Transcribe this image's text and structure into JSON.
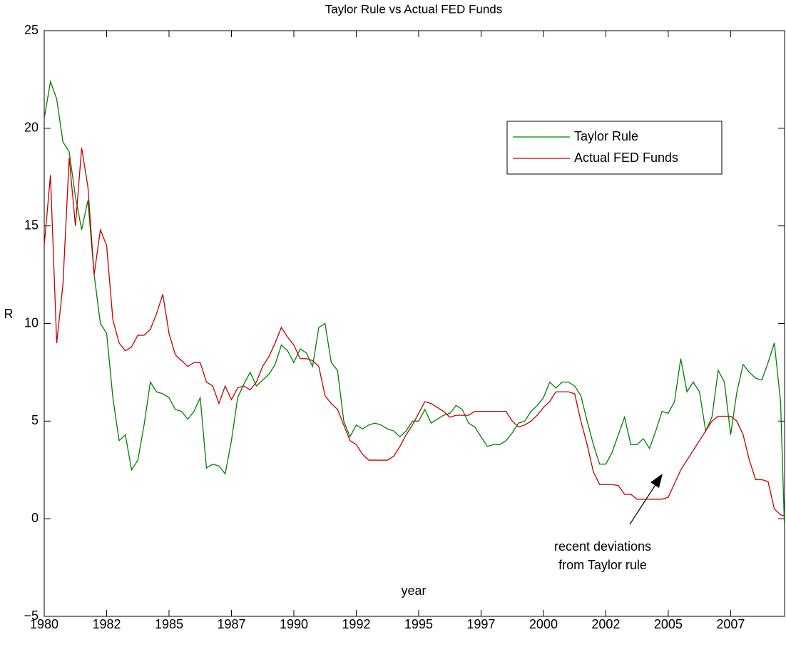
{
  "chart_data": {
    "type": "line",
    "title": "Taylor Rule vs Actual FED Funds",
    "x_label": "year",
    "y_label": "R",
    "annotation": [
      "recent deviations",
      "from Taylor rule"
    ],
    "legend": "northeast",
    "grid": false,
    "xlim": [
      1980,
      2009.66
    ],
    "ylim": [
      -5,
      25
    ],
    "xticks": [
      1980,
      {
        "value": 1982.5,
        "label": "1982"
      },
      1985,
      {
        "value": 1987.5,
        "label": "1987"
      },
      1990,
      {
        "value": 1992.5,
        "label": "1992"
      },
      1995,
      {
        "value": 1997.5,
        "label": "1997"
      },
      2000,
      {
        "value": 2002.5,
        "label": "2002"
      },
      2005,
      {
        "value": 2007.5,
        "label": "2007"
      }
    ],
    "yticks": [
      {
        "value": -5,
        "label": "−5"
      },
      0,
      5,
      10,
      15,
      20,
      25
    ],
    "x": [
      1980,
      1980.25,
      1980.5,
      1980.75,
      1981,
      1981.25,
      1981.5,
      1981.75,
      1982,
      1982.25,
      1982.5,
      1982.75,
      1983,
      1983.25,
      1983.5,
      1983.75,
      1984,
      1984.25,
      1984.5,
      1984.75,
      1985,
      1985.25,
      1985.5,
      1985.75,
      1986,
      1986.25,
      1986.5,
      1986.75,
      1987,
      1987.25,
      1987.5,
      1987.75,
      1988,
      1988.25,
      1988.5,
      1988.75,
      1989,
      1989.25,
      1989.5,
      1989.75,
      1990,
      1990.25,
      1990.5,
      1990.75,
      1991,
      1991.25,
      1991.5,
      1991.75,
      1992,
      1992.25,
      1992.5,
      1992.75,
      1993,
      1993.25,
      1993.5,
      1993.75,
      1994,
      1994.25,
      1994.5,
      1994.75,
      1995,
      1995.25,
      1995.5,
      1995.75,
      1996,
      1996.25,
      1996.5,
      1996.75,
      1997,
      1997.25,
      1997.5,
      1997.75,
      1998,
      1998.25,
      1998.5,
      1998.75,
      1999,
      1999.25,
      1999.5,
      1999.75,
      2000,
      2000.25,
      2000.5,
      2000.75,
      2001,
      2001.25,
      2001.5,
      2001.75,
      2002,
      2002.25,
      2002.5,
      2002.75,
      2003,
      2003.25,
      2003.5,
      2003.75,
      2004,
      2004.25,
      2004.5,
      2004.75,
      2005,
      2005.25,
      2005.5,
      2005.75,
      2006,
      2006.25,
      2006.5,
      2006.75,
      2007,
      2007.25,
      2007.5,
      2007.75,
      2008,
      2008.25,
      2008.5,
      2008.75,
      2009,
      2009.25,
      2009.5,
      2009.65
    ],
    "series": [
      {
        "name": "Taylor Rule",
        "color": "#007f00",
        "values": [
          20.5,
          22.4,
          21.5,
          19.3,
          18.8,
          16.5,
          14.8,
          16.3,
          12.5,
          10.0,
          9.5,
          6.2,
          4.0,
          4.3,
          2.5,
          3.0,
          4.8,
          7.0,
          6.5,
          6.4,
          6.2,
          5.6,
          5.5,
          5.1,
          5.5,
          6.2,
          2.6,
          2.8,
          2.7,
          2.3,
          4.0,
          6.2,
          6.9,
          7.5,
          6.8,
          7.1,
          7.4,
          7.9,
          8.9,
          8.6,
          8.0,
          8.7,
          8.5,
          7.8,
          9.8,
          10.0,
          8.0,
          7.6,
          5.0,
          4.2,
          4.8,
          4.6,
          4.8,
          4.9,
          4.8,
          4.6,
          4.5,
          4.2,
          4.5,
          5.0,
          5.0,
          5.6,
          4.9,
          5.1,
          5.3,
          5.4,
          5.8,
          5.6,
          4.9,
          4.7,
          4.2,
          3.7,
          3.8,
          3.8,
          4.0,
          4.4,
          4.9,
          5.0,
          5.5,
          5.8,
          6.2,
          7.0,
          6.7,
          7.0,
          7.0,
          6.8,
          6.3,
          5.0,
          3.8,
          2.8,
          2.8,
          3.4,
          4.3,
          5.2,
          3.8,
          3.8,
          4.1,
          3.6,
          4.5,
          5.5,
          5.4,
          6.0,
          8.2,
          6.5,
          7.0,
          6.5,
          4.5,
          5.2,
          7.6,
          7.0,
          4.3,
          6.5,
          7.9,
          7.5,
          7.2,
          7.1,
          8.0,
          9.0,
          6.0,
          -0.2
        ]
      },
      {
        "name": "Actual FED Funds",
        "color": "#c00000",
        "values": [
          14.0,
          17.6,
          9.0,
          12.0,
          18.5,
          15.0,
          19.0,
          17.0,
          12.5,
          14.8,
          14.0,
          10.2,
          9.0,
          8.6,
          8.8,
          9.4,
          9.4,
          9.7,
          10.5,
          11.5,
          9.5,
          8.4,
          8.1,
          7.8,
          8.0,
          8.0,
          7.0,
          6.8,
          5.9,
          6.8,
          6.1,
          6.7,
          6.8,
          6.6,
          7.0,
          7.8,
          8.3,
          9.0,
          9.8,
          9.3,
          8.9,
          8.2,
          8.2,
          8.1,
          7.8,
          6.3,
          5.9,
          5.6,
          4.8,
          4.0,
          3.8,
          3.3,
          3.0,
          3.0,
          3.0,
          3.0,
          3.2,
          3.7,
          4.3,
          4.8,
          5.4,
          6.0,
          5.9,
          5.7,
          5.5,
          5.2,
          5.3,
          5.3,
          5.3,
          5.5,
          5.5,
          5.5,
          5.5,
          5.5,
          5.5,
          5.0,
          4.7,
          4.8,
          5.0,
          5.3,
          5.7,
          6.0,
          6.5,
          6.5,
          6.5,
          6.4,
          5.0,
          3.8,
          2.4,
          1.75,
          1.75,
          1.75,
          1.7,
          1.25,
          1.25,
          1.0,
          1.0,
          1.0,
          1.0,
          1.0,
          1.1,
          1.8,
          2.5,
          3.0,
          3.5,
          4.0,
          4.5,
          5.0,
          5.25,
          5.25,
          5.25,
          5.0,
          4.3,
          3.0,
          2.0,
          2.0,
          1.9,
          0.5,
          0.2,
          0.15
        ]
      }
    ]
  }
}
